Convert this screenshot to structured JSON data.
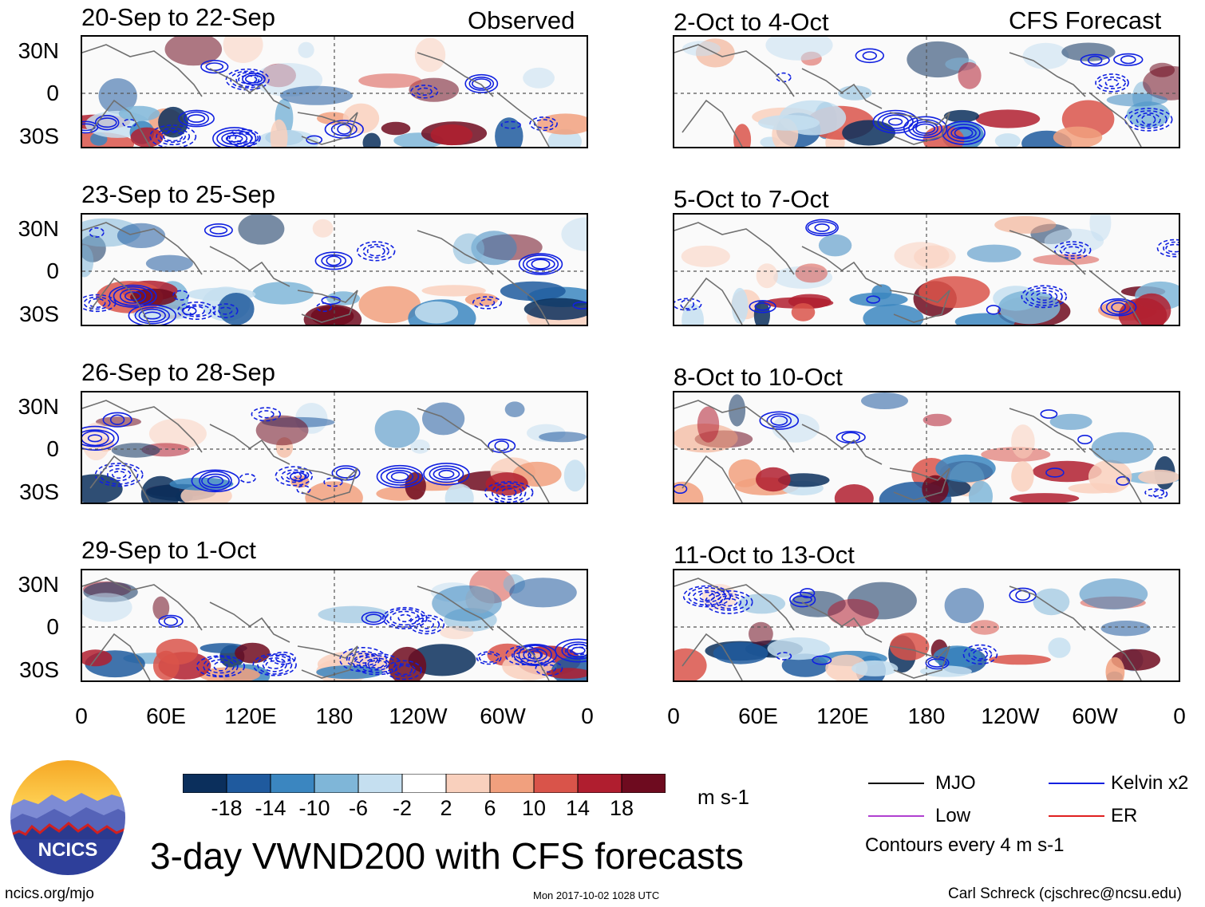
{
  "chart_data": {
    "type": "heatmap",
    "title": "3-day VWND200 with CFS forecasts",
    "variable": "VWND200",
    "units": "m s-1",
    "latitude_ticks": [
      "30N",
      "0",
      "30S"
    ],
    "longitude_ticks": [
      "0",
      "60E",
      "120E",
      "180",
      "120W",
      "60W",
      "0"
    ],
    "colorbar_levels": [
      "-18",
      "-14",
      "-10",
      "-6",
      "-2",
      "2",
      "6",
      "10",
      "14",
      "18"
    ],
    "colorbar_colors": [
      "#0b2f5c",
      "#1f5a9e",
      "#3b86c0",
      "#7fb6d8",
      "#c5dff0",
      "#ffffff",
      "#f9d0bd",
      "#f1a07e",
      "#d9544a",
      "#b01e2f",
      "#6e0b1f"
    ],
    "observed_label": "Observed",
    "forecast_label": "CFS Forecast",
    "panels_observed": [
      "20-Sep to 22-Sep",
      "23-Sep to 25-Sep",
      "26-Sep to 28-Sep",
      "29-Sep to 1-Oct"
    ],
    "panels_forecast": [
      "2-Oct to 4-Oct",
      "5-Oct to 7-Oct",
      "8-Oct to 10-Oct",
      "11-Oct to 13-Oct"
    ],
    "contour_legend": [
      {
        "label": "MJO",
        "color": "#000000"
      },
      {
        "label": "Kelvin x2",
        "color": "#1020e0"
      },
      {
        "label": "Low",
        "color": "#b040d0"
      },
      {
        "label": "ER",
        "color": "#e02020"
      }
    ],
    "contour_note": "Contours every 4 m s-1"
  },
  "logo_text": "NCICS",
  "footer": {
    "left": "ncics.org/mjo",
    "center": "Mon 2017-10-02 1028 UTC",
    "right": "Carl Schreck (cjschrec@ncsu.edu)"
  }
}
